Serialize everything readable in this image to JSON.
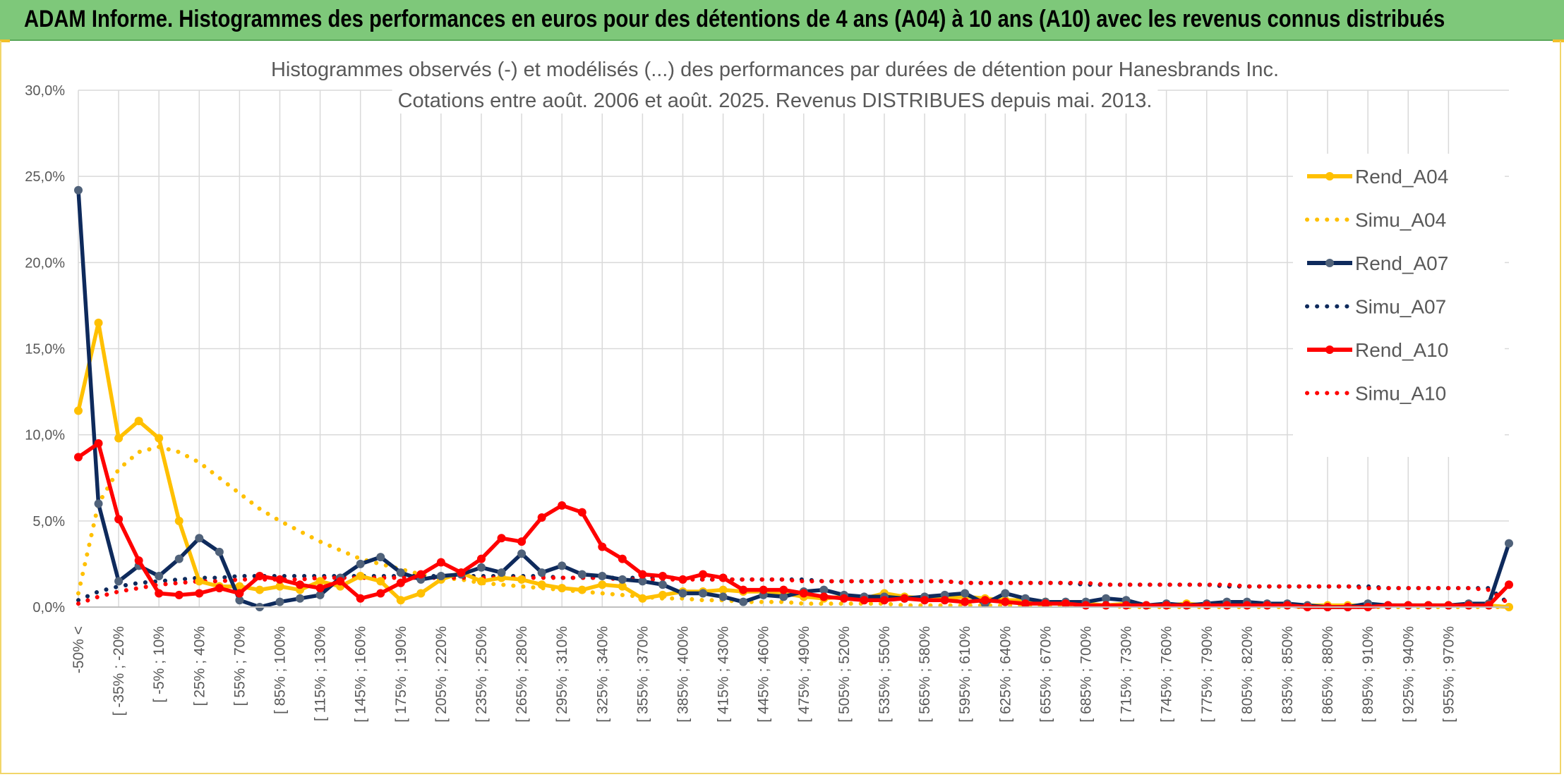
{
  "header": {
    "title": "ADAM Informe. Histogrammes des performances en euros pour des détentions de 4 ans (A04) à 10 ans (A10) avec les revenus connus distribués"
  },
  "colors": {
    "banner": "#7ec87a",
    "A04": "#ffc000",
    "A07": "#0e2a5c",
    "A10": "#ff0000",
    "marker07": "#50627a",
    "grid": "#d9d9d9",
    "text": "#595959"
  },
  "chart_data": {
    "type": "line",
    "title_lines": [
      "Histogrammes observés (-) et modélisés (...) des performances par durées de détention pour Hanesbrands Inc.",
      "Cotations entre août. 2006 et août. 2025. Revenus DISTRIBUES depuis mai. 2013."
    ],
    "ylim": [
      0,
      30
    ],
    "y_ticks": [
      "0,0%",
      "5,0%",
      "10,0%",
      "15,0%",
      "20,0%",
      "25,0%",
      "30,0%"
    ],
    "grid": true,
    "legend_position": "right",
    "x_labels": [
      "-50% <",
      "[ -35% ; -20%",
      "[ -5% ; 10%",
      "[ 25% ; 40%",
      "[ 55% ; 70%",
      "[ 85% ; 100%",
      "[ 115% ; 130%",
      "[ 145% ; 160%",
      "[ 175% ; 190%",
      "[ 205% ; 220%",
      "[ 235% ; 250%",
      "[ 265% ; 280%",
      "[ 295% ; 310%",
      "[ 325% ; 340%",
      "[ 355% ; 370%",
      "[ 385% ; 400%",
      "[ 415% ; 430%",
      "[ 445% ; 460%",
      "[ 475% ; 490%",
      "[ 505% ; 520%",
      "[ 535% ; 550%",
      "[ 565% ; 580%",
      "[ 595% ; 610%",
      "[ 625% ; 640%",
      "[ 655% ; 670%",
      "[ 685% ; 700%",
      "[ 715% ; 730%",
      "[ 745% ; 760%",
      "[ 775% ; 790%",
      "[ 805% ; 820%",
      "[ 835% ; 850%",
      "[ 865% ; 880%",
      "[ 895% ; 910%",
      "[ 925% ; 940%",
      "[ 955% ; 970%"
    ],
    "series": [
      {
        "name": "Rend_A04",
        "style": "solid",
        "color": "#ffc000",
        "values": [
          11.4,
          16.5,
          9.8,
          10.8,
          9.8,
          5.0,
          1.5,
          1.2,
          1.2,
          1.0,
          1.2,
          1.0,
          1.5,
          1.2,
          1.8,
          1.5,
          0.4,
          0.8,
          1.6,
          2.0,
          1.5,
          1.7,
          1.6,
          1.3,
          1.1,
          1.0,
          1.3,
          1.2,
          0.5,
          0.7,
          0.9,
          0.9,
          1.0,
          0.9,
          0.9,
          0.8,
          0.6,
          0.5,
          0.6,
          0.5,
          0.8,
          0.6,
          0.5,
          0.5,
          0.6,
          0.5,
          0.4,
          0.4,
          0.3,
          0.2,
          0.2,
          0.1,
          0.2,
          0.1,
          0.1,
          0.2,
          0.1,
          0.1,
          0.1,
          0.1,
          0.1,
          0.1,
          0.1,
          0.1,
          0.1,
          0.1,
          0.1,
          0.1,
          0.1,
          0.1,
          0.1,
          0.0
        ]
      },
      {
        "name": "Simu_A04",
        "style": "dotted",
        "color": "#ffc000",
        "values": [
          0.8,
          6.0,
          8.0,
          9.0,
          9.3,
          9.0,
          8.4,
          7.5,
          6.6,
          5.7,
          5.0,
          4.4,
          3.8,
          3.3,
          2.8,
          2.5,
          2.2,
          1.9,
          1.7,
          1.6,
          1.4,
          1.3,
          1.2,
          1.1,
          1.0,
          0.9,
          0.8,
          0.7,
          0.6,
          0.5,
          0.5,
          0.4,
          0.4,
          0.3,
          0.3,
          0.3,
          0.2,
          0.2,
          0.2,
          0.2,
          0.2,
          0.1,
          0.1,
          0.1,
          0.1,
          0.1,
          0.1,
          0.1,
          0.1,
          0.1,
          0.1,
          0.1,
          0.0,
          0.0,
          0.0,
          0.0,
          0.0,
          0.0,
          0.0,
          0.0,
          0.0,
          0.0,
          0.0,
          0.0,
          0.0,
          0.0,
          0.0,
          0.0,
          0.0,
          0.0,
          0.0,
          0.0
        ]
      },
      {
        "name": "Rend_A07",
        "style": "solid",
        "color": "#0e2a5c",
        "values": [
          24.2,
          6.0,
          1.5,
          2.4,
          1.8,
          2.8,
          4.0,
          3.2,
          0.4,
          0.0,
          0.3,
          0.5,
          0.7,
          1.7,
          2.5,
          2.9,
          2.0,
          1.6,
          1.8,
          1.9,
          2.3,
          2.0,
          3.1,
          2.0,
          2.4,
          1.9,
          1.8,
          1.6,
          1.5,
          1.3,
          0.8,
          0.8,
          0.6,
          0.3,
          0.7,
          0.6,
          0.9,
          1.0,
          0.7,
          0.6,
          0.6,
          0.5,
          0.6,
          0.7,
          0.8,
          0.2,
          0.8,
          0.5,
          0.3,
          0.3,
          0.3,
          0.5,
          0.4,
          0.1,
          0.2,
          0.1,
          0.2,
          0.3,
          0.3,
          0.2,
          0.2,
          0.1,
          0.0,
          0.0,
          0.2,
          0.1,
          0.1,
          0.1,
          0.1,
          0.2,
          0.2,
          3.7
        ]
      },
      {
        "name": "Simu_A07",
        "style": "dotted",
        "color": "#0e2a5c",
        "values": [
          0.4,
          0.9,
          1.2,
          1.4,
          1.5,
          1.6,
          1.7,
          1.7,
          1.8,
          1.8,
          1.8,
          1.8,
          1.8,
          1.8,
          1.8,
          1.8,
          1.8,
          1.8,
          1.8,
          1.8,
          1.8,
          1.8,
          1.8,
          1.8,
          1.7,
          1.7,
          1.7,
          1.7,
          1.7,
          1.7,
          1.7,
          1.6,
          1.6,
          1.6,
          1.6,
          1.6,
          1.6,
          1.5,
          1.5,
          1.5,
          1.5,
          1.5,
          1.5,
          1.5,
          1.4,
          1.4,
          1.4,
          1.4,
          1.4,
          1.4,
          1.3,
          1.3,
          1.3,
          1.3,
          1.3,
          1.3,
          1.3,
          1.2,
          1.2,
          1.2,
          1.2,
          1.2,
          1.2,
          1.2,
          1.2,
          1.1,
          1.1,
          1.1,
          1.1,
          1.1,
          1.1,
          0.2
        ]
      },
      {
        "name": "Rend_A10",
        "style": "solid",
        "color": "#ff0000",
        "values": [
          8.7,
          9.5,
          5.1,
          2.7,
          0.8,
          0.7,
          0.8,
          1.1,
          0.8,
          1.8,
          1.6,
          1.3,
          1.1,
          1.5,
          0.5,
          0.8,
          1.4,
          1.9,
          2.6,
          2.0,
          2.8,
          4.0,
          3.8,
          5.2,
          5.9,
          5.5,
          3.5,
          2.8,
          1.9,
          1.8,
          1.6,
          1.9,
          1.7,
          1.0,
          1.0,
          1.0,
          0.8,
          0.6,
          0.5,
          0.4,
          0.4,
          0.5,
          0.4,
          0.4,
          0.3,
          0.4,
          0.3,
          0.2,
          0.2,
          0.2,
          0.1,
          0.1,
          0.1,
          0.1,
          0.1,
          0.1,
          0.1,
          0.1,
          0.1,
          0.1,
          0.1,
          0.0,
          0.0,
          0.0,
          0.0,
          0.1,
          0.1,
          0.1,
          0.1,
          0.1,
          0.1,
          1.3
        ]
      },
      {
        "name": "Simu_A10",
        "style": "dotted",
        "color": "#ff0000",
        "values": [
          0.2,
          0.6,
          0.9,
          1.1,
          1.3,
          1.4,
          1.5,
          1.5,
          1.6,
          1.6,
          1.6,
          1.6,
          1.7,
          1.7,
          1.7,
          1.7,
          1.7,
          1.7,
          1.7,
          1.7,
          1.7,
          1.7,
          1.7,
          1.7,
          1.7,
          1.7,
          1.7,
          1.6,
          1.6,
          1.6,
          1.6,
          1.6,
          1.6,
          1.6,
          1.6,
          1.6,
          1.5,
          1.5,
          1.5,
          1.5,
          1.5,
          1.5,
          1.5,
          1.5,
          1.4,
          1.4,
          1.4,
          1.4,
          1.4,
          1.4,
          1.4,
          1.3,
          1.3,
          1.3,
          1.3,
          1.3,
          1.3,
          1.3,
          1.2,
          1.2,
          1.2,
          1.2,
          1.2,
          1.2,
          1.1,
          1.1,
          1.1,
          1.1,
          1.1,
          1.1,
          1.0,
          0.2
        ]
      }
    ]
  }
}
